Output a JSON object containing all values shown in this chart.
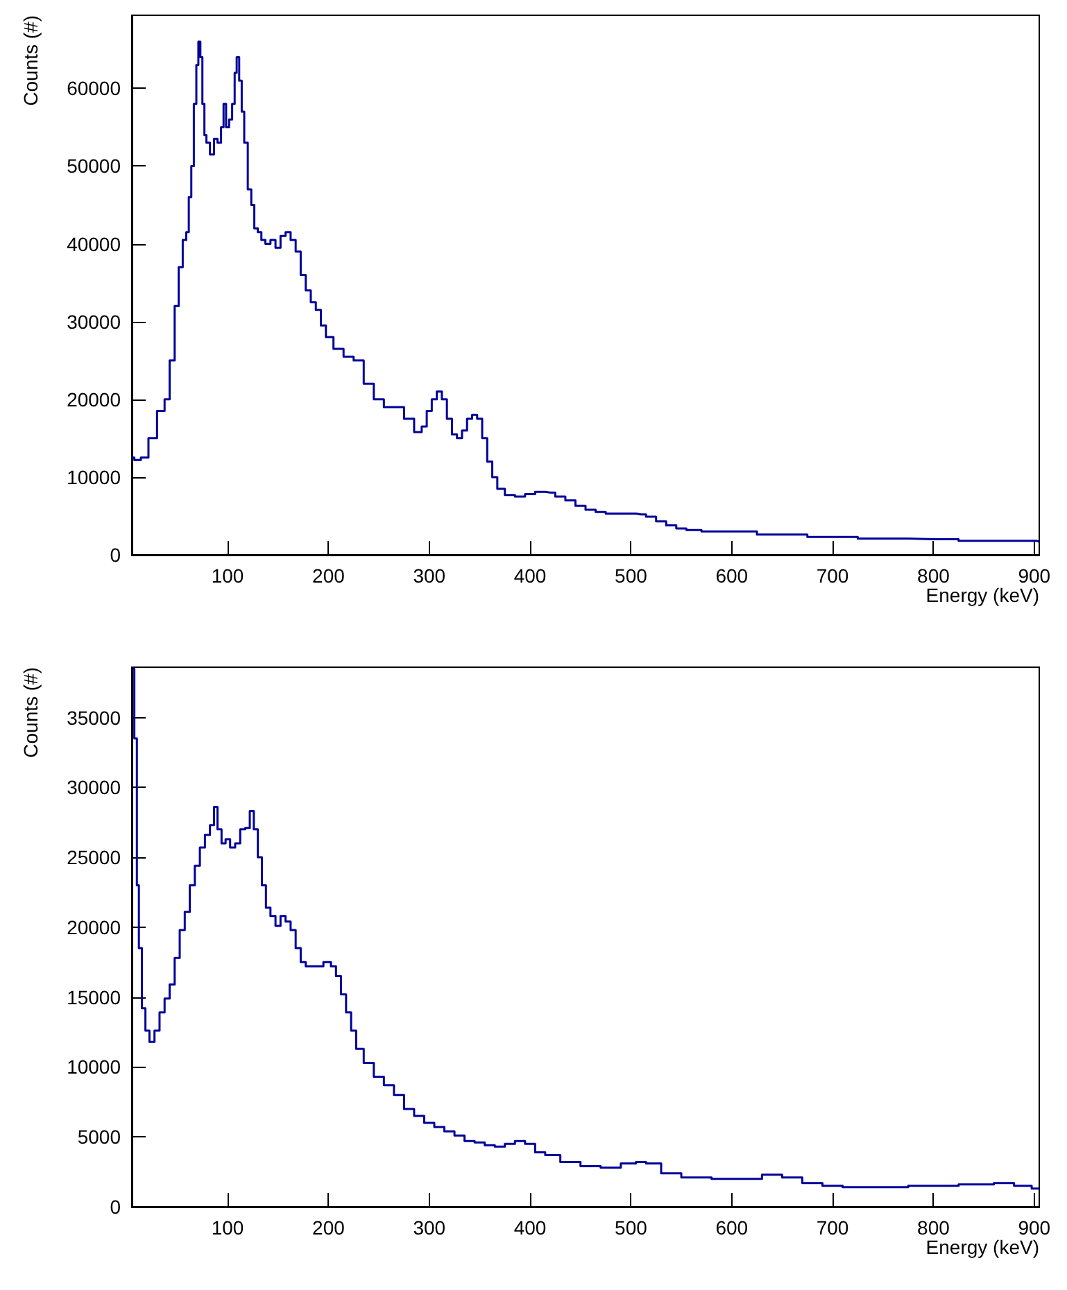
{
  "chart_data": [
    {
      "type": "step",
      "xlabel": "Energy (keV)",
      "ylabel": "Counts (#)",
      "xlim": [
        5,
        905
      ],
      "ylim": [
        0,
        69400
      ],
      "xticks": [
        100,
        200,
        300,
        400,
        500,
        600,
        700,
        800,
        900
      ],
      "yticks": [
        0,
        10000,
        20000,
        30000,
        40000,
        50000,
        60000
      ],
      "grid": false,
      "series": [
        {
          "color": "#000099",
          "x": [
            5,
            10,
            18,
            25,
            35,
            40,
            45,
            50,
            53,
            58,
            60,
            63,
            65,
            68,
            70,
            72,
            74,
            76,
            78,
            80,
            85,
            88,
            92,
            95,
            97,
            100,
            103,
            106,
            108,
            110,
            113,
            115,
            118,
            122,
            125,
            128,
            132,
            135,
            140,
            145,
            150,
            155,
            160,
            165,
            170,
            175,
            180,
            185,
            190,
            195,
            200,
            210,
            220,
            230,
            240,
            250,
            260,
            270,
            280,
            290,
            295,
            300,
            305,
            310,
            315,
            320,
            325,
            330,
            335,
            340,
            345,
            350,
            355,
            360,
            365,
            370,
            380,
            390,
            400,
            410,
            420,
            430,
            440,
            450,
            460,
            470,
            480,
            490,
            500,
            510,
            520,
            530,
            540,
            550,
            560,
            580,
            600,
            650,
            700,
            750,
            800,
            850,
            900,
            905
          ],
          "values": [
            12500,
            12200,
            12500,
            15000,
            18500,
            20000,
            25000,
            32000,
            37000,
            40500,
            41500,
            46000,
            50000,
            58000,
            63000,
            66000,
            64000,
            58000,
            54000,
            53000,
            51500,
            53500,
            53000,
            55000,
            58000,
            55000,
            56000,
            58000,
            62000,
            64000,
            61000,
            57000,
            53000,
            47000,
            45000,
            42000,
            41500,
            40500,
            40000,
            40500,
            39500,
            41000,
            41500,
            40500,
            39000,
            36000,
            34000,
            32500,
            31500,
            29500,
            28000,
            26500,
            25500,
            25000,
            22000,
            20000,
            19000,
            19000,
            17500,
            15800,
            16500,
            18500,
            20000,
            21000,
            20000,
            17500,
            15500,
            15000,
            16000,
            17500,
            18000,
            17500,
            15000,
            12000,
            10000,
            8500,
            7700,
            7500,
            7800,
            8100,
            8000,
            7500,
            7000,
            6300,
            5800,
            5500,
            5300,
            5300,
            5300,
            5200,
            4900,
            4300,
            3800,
            3400,
            3200,
            3000,
            3000,
            2600,
            2300,
            2100,
            2000,
            1800,
            1800,
            1700
          ]
        }
      ]
    },
    {
      "type": "step",
      "xlabel": "Energy (keV)",
      "ylabel": "Counts (#)",
      "xlim": [
        5,
        905
      ],
      "ylim": [
        0,
        38600
      ],
      "xticks": [
        100,
        200,
        300,
        400,
        500,
        600,
        700,
        800,
        900
      ],
      "yticks": [
        0,
        5000,
        10000,
        15000,
        20000,
        25000,
        30000,
        35000
      ],
      "grid": false,
      "series": [
        {
          "color": "#000099",
          "x": [
            6,
            9,
            11,
            13,
            17,
            20,
            25,
            30,
            35,
            40,
            45,
            50,
            55,
            60,
            65,
            70,
            75,
            80,
            85,
            88,
            92,
            96,
            100,
            105,
            110,
            115,
            120,
            124,
            128,
            132,
            136,
            140,
            145,
            150,
            155,
            160,
            165,
            170,
            175,
            180,
            190,
            200,
            205,
            210,
            215,
            220,
            225,
            230,
            240,
            250,
            260,
            270,
            280,
            290,
            300,
            310,
            320,
            330,
            340,
            350,
            360,
            370,
            380,
            390,
            400,
            410,
            420,
            440,
            460,
            480,
            500,
            510,
            520,
            540,
            560,
            600,
            620,
            640,
            660,
            680,
            700,
            720,
            750,
            800,
            850,
            870,
            890,
            905
          ],
          "values": [
            38500,
            33500,
            23000,
            18500,
            14200,
            12600,
            11800,
            12600,
            13900,
            14900,
            15900,
            17800,
            19800,
            21100,
            23000,
            24400,
            25700,
            26600,
            27300,
            28600,
            27000,
            26000,
            26300,
            25700,
            26000,
            27000,
            27100,
            28300,
            27000,
            25000,
            23000,
            21400,
            20800,
            20100,
            20800,
            20400,
            19800,
            18500,
            17500,
            17200,
            17200,
            17500,
            17200,
            16500,
            15200,
            13900,
            12600,
            11300,
            10300,
            9300,
            8700,
            8000,
            7000,
            6500,
            6000,
            5700,
            5400,
            5100,
            4700,
            4600,
            4400,
            4300,
            4500,
            4700,
            4500,
            3900,
            3700,
            3200,
            2900,
            2800,
            3100,
            3200,
            3100,
            2400,
            2100,
            2000,
            2000,
            2300,
            2100,
            1700,
            1500,
            1400,
            1400,
            1500,
            1600,
            1700,
            1500,
            1300
          ]
        }
      ]
    }
  ]
}
